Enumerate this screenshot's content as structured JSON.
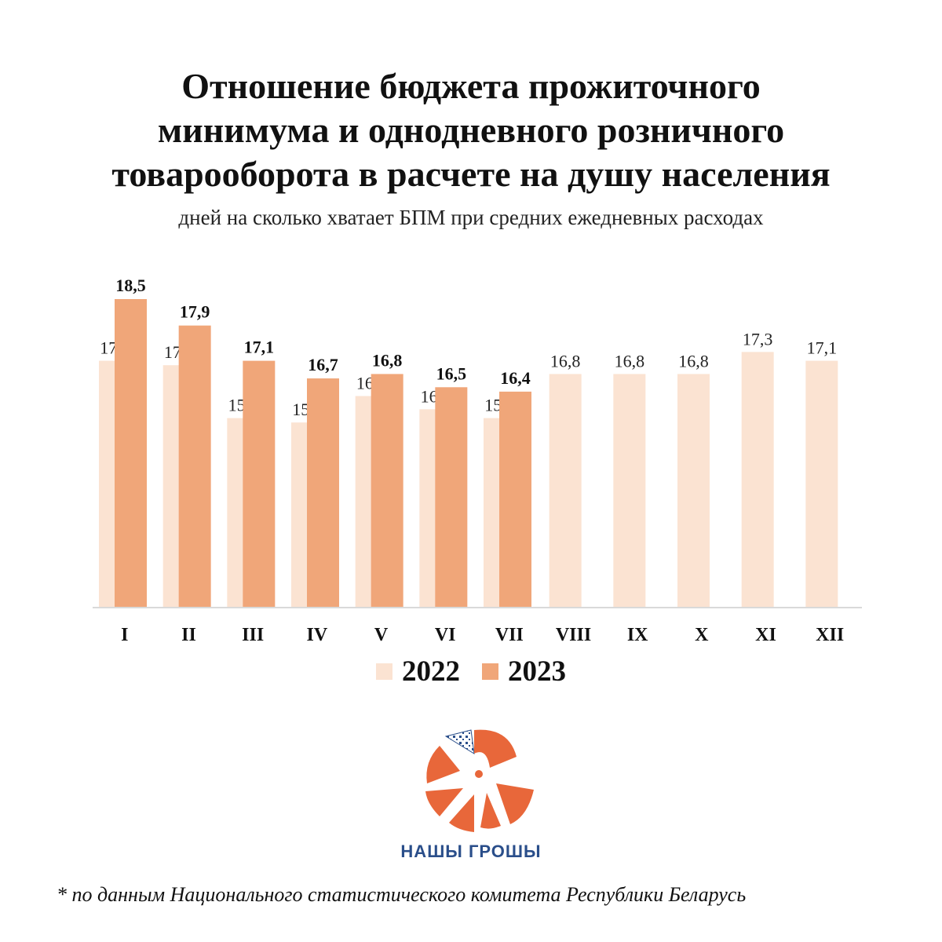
{
  "title_lines": [
    "Отношение бюджета прожиточного",
    "минимума и однодневного розничного",
    "товарооборота в расчете на душу населения"
  ],
  "subtitle": "дней на сколько хватает БПМ при средних ежедневных расходах",
  "colors": {
    "series_2022": "#FBE3D2",
    "series_2023": "#F0A679",
    "axis": "#D9D9D9"
  },
  "chart_data": {
    "type": "bar",
    "title": "Отношение бюджета прожиточного минимума и однодневного розничного товарооборота в расчете на душу населения",
    "subtitle": "дней на сколько хватает БПМ при средних ежедневных расходах",
    "categories": [
      "I",
      "II",
      "III",
      "IV",
      "V",
      "VI",
      "VII",
      "VIII",
      "IX",
      "X",
      "XI",
      "XII"
    ],
    "series": [
      {
        "name": "2022",
        "values": [
          17.1,
          17.0,
          15.8,
          15.7,
          16.3,
          16.0,
          15.8,
          16.8,
          16.8,
          16.8,
          17.3,
          17.1
        ]
      },
      {
        "name": "2023",
        "values": [
          18.5,
          17.9,
          17.1,
          16.7,
          16.8,
          16.5,
          16.4,
          null,
          null,
          null,
          null,
          null
        ]
      }
    ],
    "value_labels": {
      "2022": [
        "17,1",
        "17,0",
        "15,8",
        "15,7",
        "16,3",
        "16,0",
        "15,8",
        "16,8",
        "16,8",
        "16,8",
        "17,3",
        "17,1"
      ],
      "2023": [
        "18,5",
        "17,9",
        "17,1",
        "16,7",
        "16,8",
        "16,5",
        "16,4"
      ]
    },
    "ylim": [
      11.5,
      18.5
    ],
    "grid": false,
    "legend_position": "bottom"
  },
  "legend": {
    "items": [
      "2022",
      "2023"
    ]
  },
  "logo": {
    "text": "НАШЫ ГРОШЫ",
    "icon": "nashy-groshy-logo-icon"
  },
  "footnote": "* по данным Национального статистического комитета Республики Беларусь"
}
